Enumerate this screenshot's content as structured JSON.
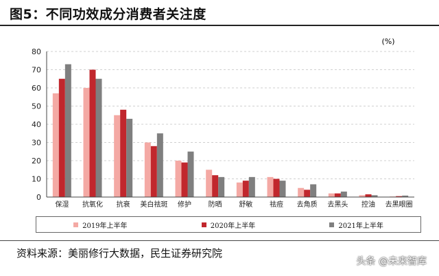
{
  "title": "图5：不同功效成分消费者关注度",
  "unit": "(%)",
  "colors": {
    "series_2019": "#f4a9a4",
    "series_2020": "#c1272d",
    "series_2021": "#7f7f7f",
    "grid": "#cfcfcf"
  },
  "chart_data": {
    "type": "bar",
    "categories": [
      "保湿",
      "抗氧化",
      "抗衰",
      "美白祛斑",
      "修护",
      "防晒",
      "舒敏",
      "祛痘",
      "去角质",
      "去黑头",
      "控油",
      "去黑眼圈"
    ],
    "series": [
      {
        "name": "2019年上半年",
        "values": [
          57,
          60,
          45,
          30,
          20,
          15,
          8,
          11,
          5,
          2,
          1,
          0.3
        ]
      },
      {
        "name": "2020年上半年",
        "values": [
          65,
          70,
          48,
          28,
          19,
          12,
          9,
          10,
          4,
          2,
          1.5,
          0.5
        ]
      },
      {
        "name": "2021年上半年",
        "values": [
          73,
          65,
          43,
          35,
          25,
          11,
          11,
          9,
          7,
          3,
          1,
          0.8
        ]
      }
    ],
    "ylim": [
      0,
      80
    ],
    "yticks": [
      0,
      10,
      20,
      30,
      40,
      50,
      60,
      70,
      80
    ],
    "grid": "horizontal dashed",
    "legend_position": "bottom"
  },
  "source": "资料来源：美丽修行大数据，民生证券研究院",
  "watermark": "头条 @未来智库"
}
